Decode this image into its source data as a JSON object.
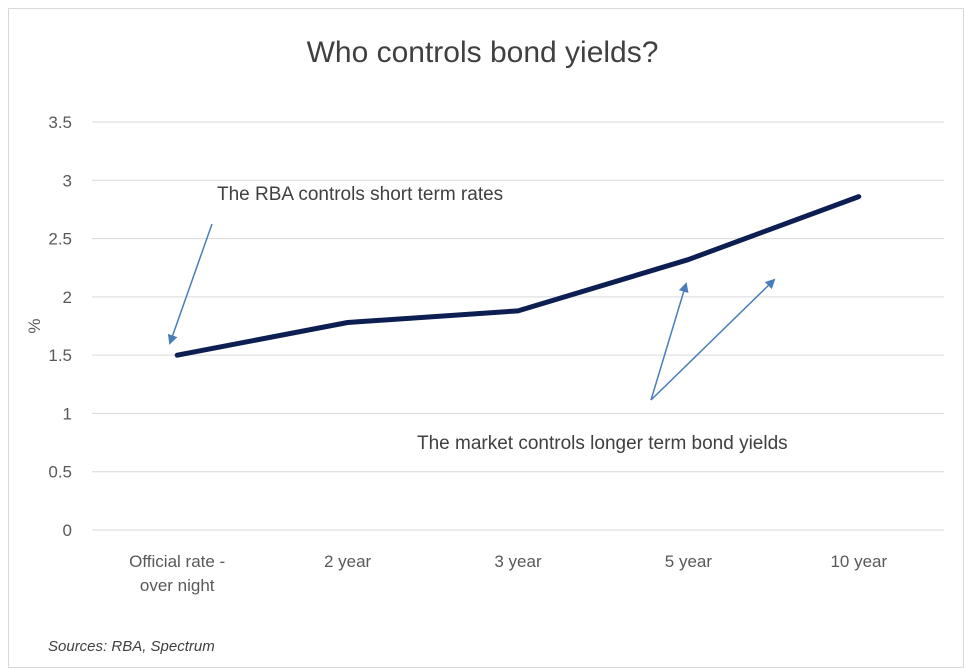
{
  "chart_data": {
    "type": "line",
    "title": "Who controls bond yields?",
    "ylabel": "%",
    "xlabel": "",
    "categories": [
      [
        "Official rate -",
        "over night"
      ],
      [
        "2 year"
      ],
      [
        "3 year"
      ],
      [
        "5 year"
      ],
      [
        "10 year"
      ]
    ],
    "series": [
      {
        "values": [
          1.5,
          1.78,
          1.88,
          2.32,
          2.86
        ],
        "color": "#0d1f52"
      }
    ],
    "ylim": [
      0,
      3.5
    ],
    "yticks": [
      0,
      0.5,
      1,
      1.5,
      2,
      2.5,
      3,
      3.5
    ],
    "ytick_labels": [
      "0",
      "0.5",
      "1",
      "1.5",
      "2",
      "2.5",
      "3",
      "3.5"
    ],
    "grid": true,
    "annotations": [
      {
        "text": "The RBA controls short term rates"
      },
      {
        "text": "The market controls longer term bond yields"
      }
    ],
    "arrow_color": "#4a7ebb",
    "grid_color": "#d9d9d9",
    "source": "Sources: RBA, Spectrum"
  }
}
